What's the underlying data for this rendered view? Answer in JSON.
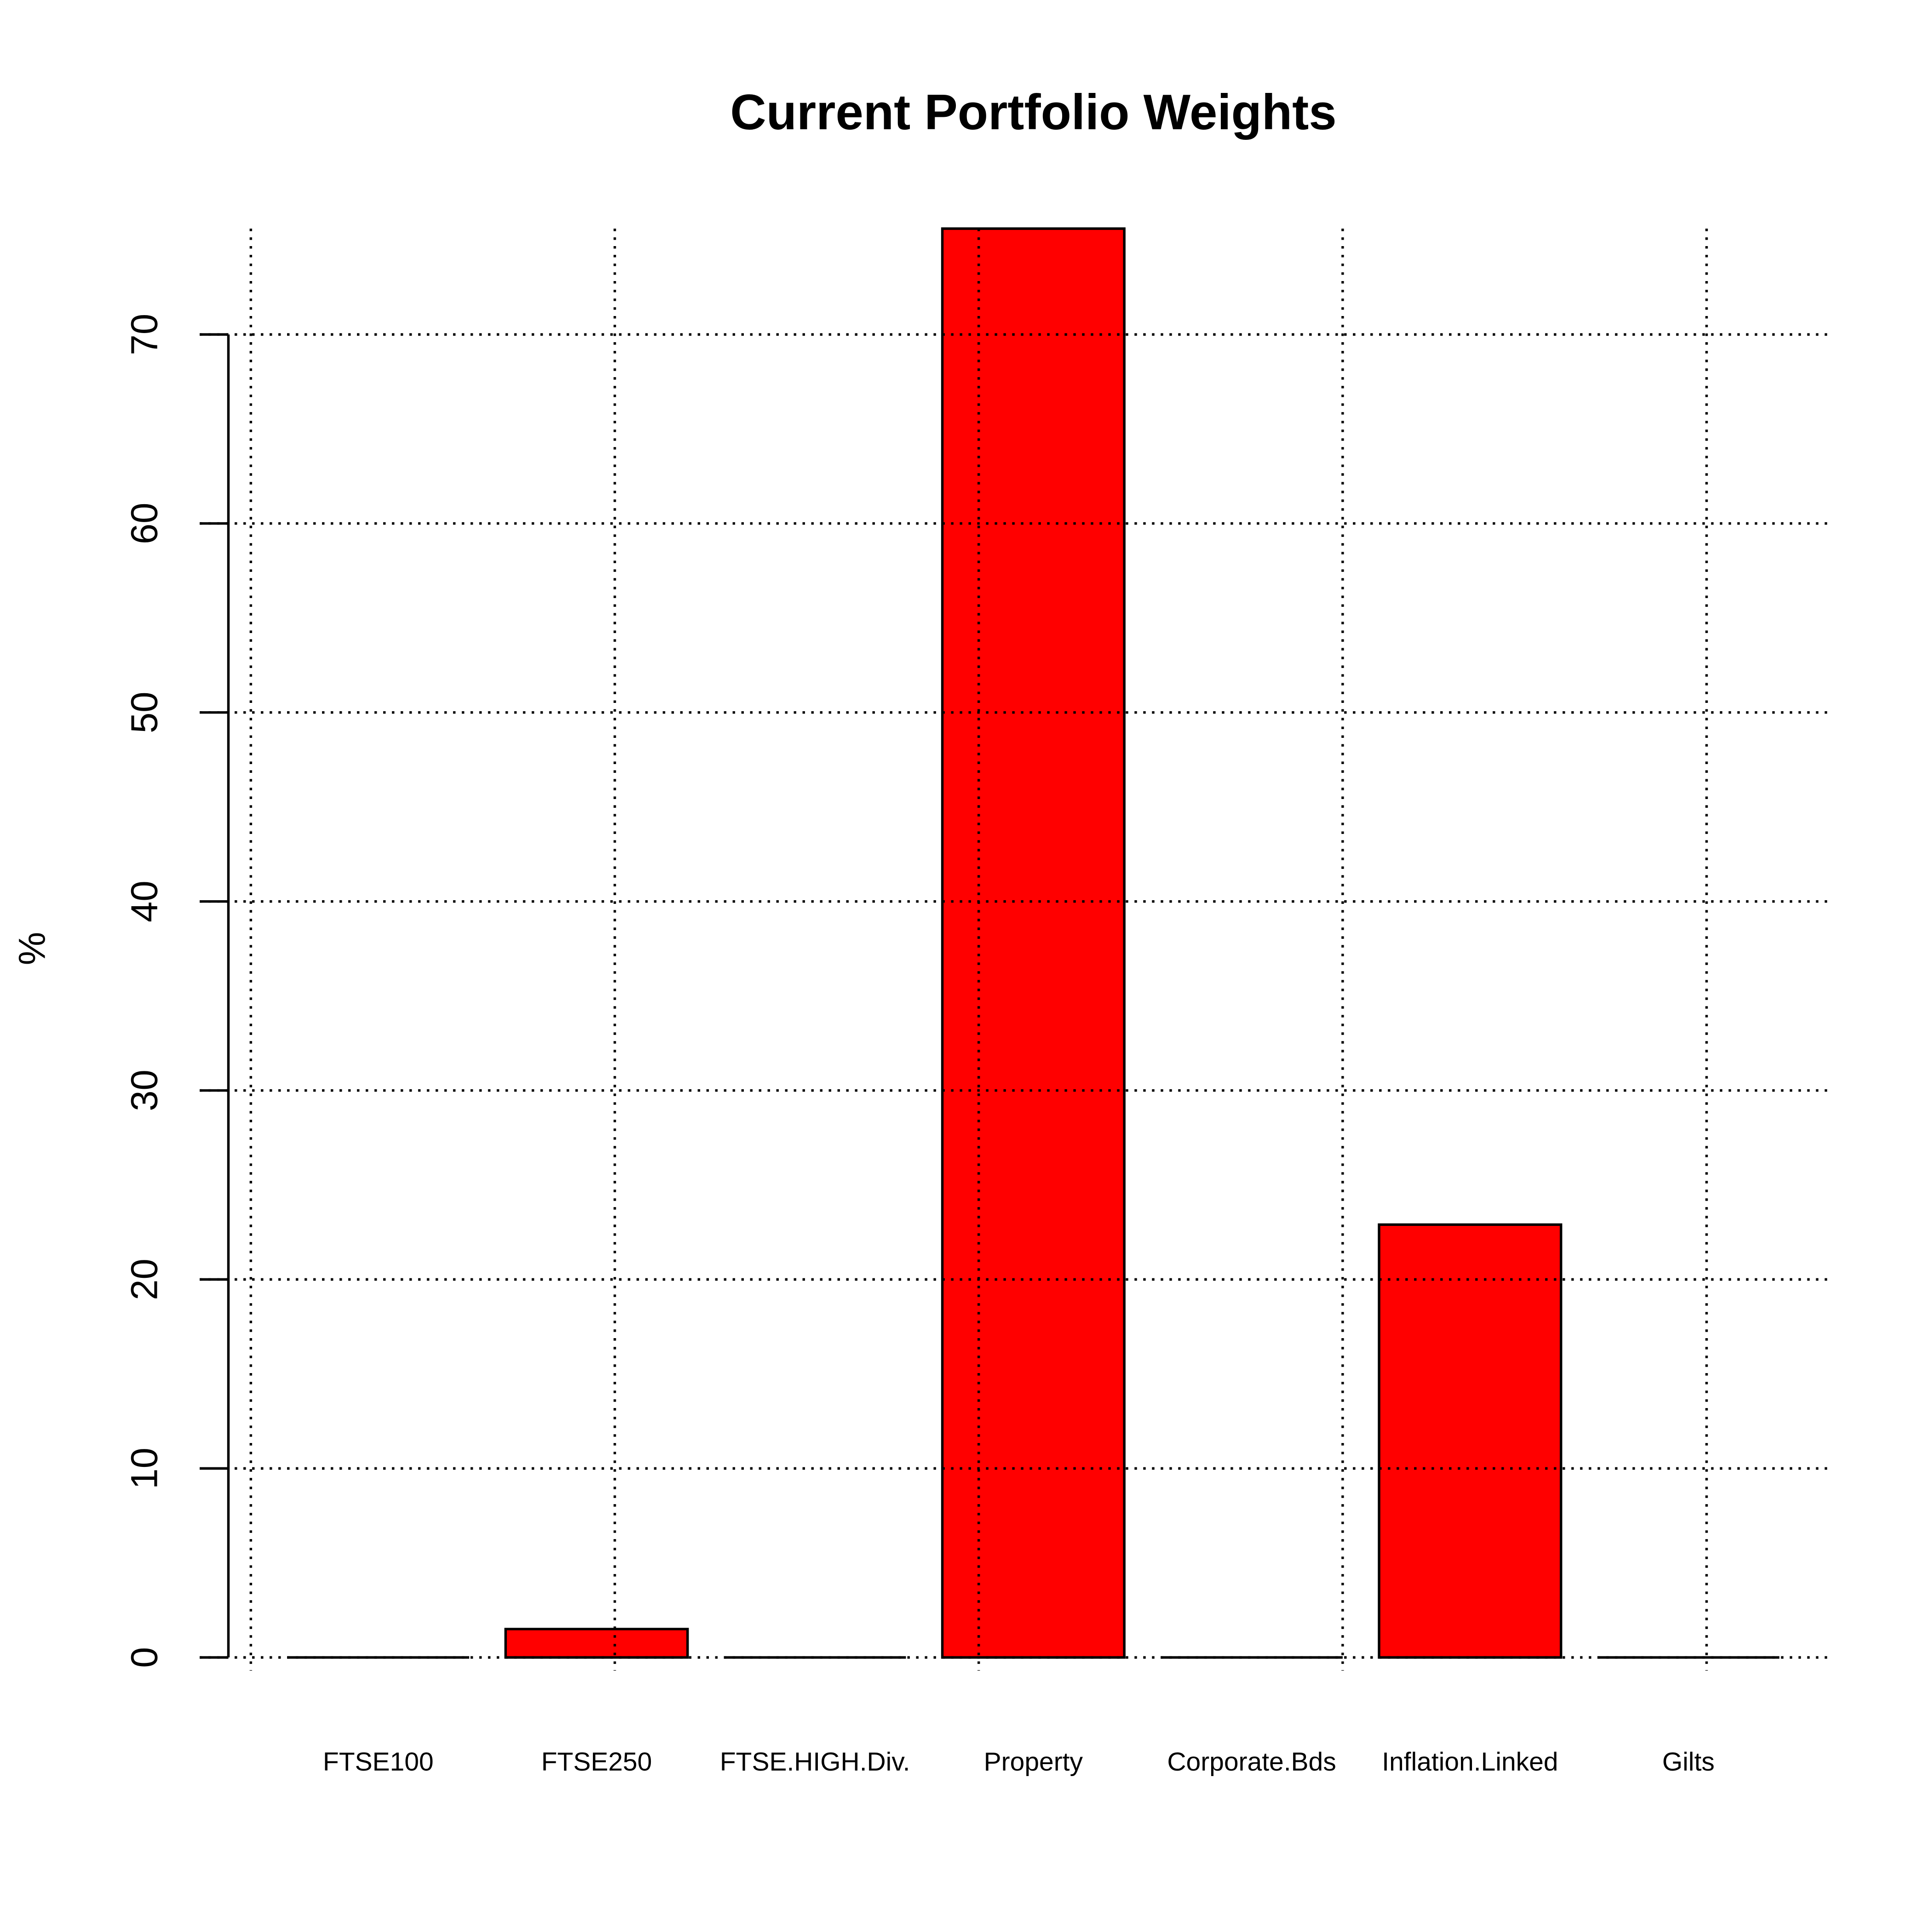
{
  "chart_data": {
    "type": "bar",
    "title": "Current Portfolio Weights",
    "ylabel": "%",
    "categories": [
      "FTSE100",
      "FTSE250",
      "FTSE.HIGH.Div.",
      "Property",
      "Corporate.Bds",
      "Inflation.Linked",
      "Gilts"
    ],
    "values": [
      0,
      1.5,
      0,
      75.6,
      0,
      22.9,
      0
    ],
    "color": "#ff0000",
    "ylim": [
      -0.7,
      75.6
    ],
    "yticks": [
      0,
      10,
      20,
      30,
      40,
      50,
      60,
      70
    ],
    "grid": true
  }
}
